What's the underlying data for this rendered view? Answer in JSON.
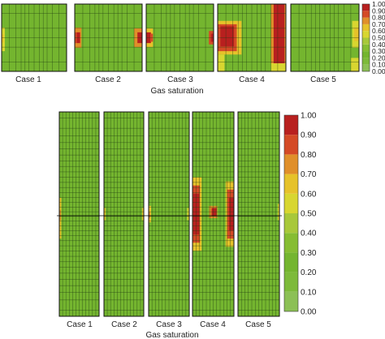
{
  "chart_data": [
    {
      "type": "heatmap",
      "title": "",
      "xlabel": "Gas saturation",
      "categories": [
        "Case 1",
        "Case 2",
        "Case 3",
        "Case 4",
        "Case 5"
      ],
      "colorbar": {
        "range": [
          0,
          1
        ],
        "ticks": [
          "0.00",
          "0.10",
          "0.20",
          "0.30",
          "0.40",
          "0.50",
          "0.60",
          "0.70",
          "0.80",
          "0.90",
          "1.00"
        ]
      },
      "series": [
        {
          "case": "Case 1",
          "max_value": 0.7,
          "red_zone": "none"
        },
        {
          "case": "Case 2",
          "max_value": 1.0,
          "red_zone": "mid-height edges"
        },
        {
          "case": "Case 3",
          "max_value": 1.0,
          "red_zone": "mid-height edges"
        },
        {
          "case": "Case 4",
          "max_value": 1.0,
          "red_zone": "mid-height, left bulge and right edge band"
        },
        {
          "case": "Case 5",
          "max_value": 0.7,
          "red_zone": "right edge, mid-height"
        }
      ]
    },
    {
      "type": "heatmap",
      "title": "",
      "xlabel": "Gas saturation",
      "categories": [
        "Case 1",
        "Case 2",
        "Case 3",
        "Case 4",
        "Case 5"
      ],
      "colorbar": {
        "range": [
          0,
          1
        ],
        "ticks": [
          "0.00",
          "0.10",
          "0.20",
          "0.30",
          "0.40",
          "0.50",
          "0.60",
          "0.70",
          "0.80",
          "0.90",
          "1.00"
        ]
      },
      "series": [
        {
          "case": "Case 1",
          "max_value": 0.7,
          "red_zone": "none"
        },
        {
          "case": "Case 2",
          "max_value": 0.8,
          "red_zone": "none"
        },
        {
          "case": "Case 3",
          "max_value": 0.8,
          "red_zone": "none"
        },
        {
          "case": "Case 4",
          "max_value": 1.0,
          "red_zone": "mid-height, both sides"
        },
        {
          "case": "Case 5",
          "max_value": 0.6,
          "red_zone": "none"
        }
      ]
    }
  ],
  "colors": {
    "scale": [
      "#7cbe6b",
      "#8cc055",
      "#7dba3a",
      "#74b52f",
      "#86bd32",
      "#a8c83a",
      "#d8d630",
      "#e6c22a",
      "#e08f2a",
      "#d44a26",
      "#b8201f"
    ],
    "grid": "#1f3a12"
  }
}
